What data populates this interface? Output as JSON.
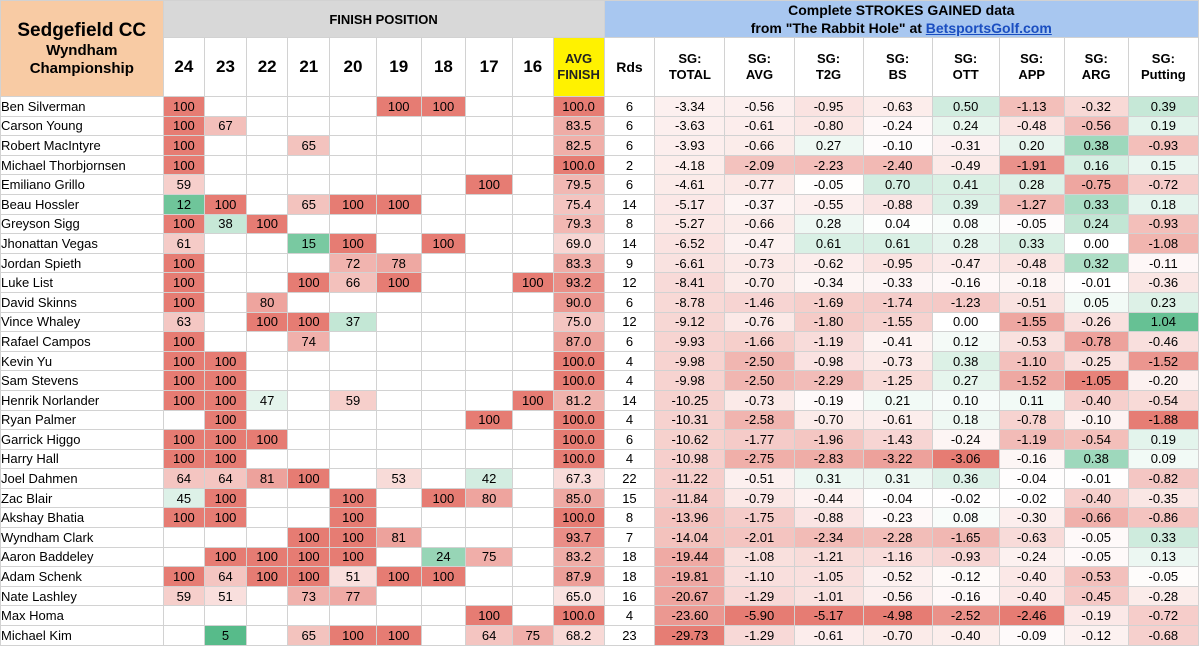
{
  "title": {
    "line1": "Sedgefield CC",
    "line2": "Wyndham",
    "line3": "Championship"
  },
  "finish_header": "FINISH POSITION",
  "sg_header": {
    "line1": "Complete STROKES GAINED data",
    "line2_prefix": "from \"The Rabbit Hole\" at ",
    "line2_link": "BetsportsGolf.com"
  },
  "finish_columns": [
    "24",
    "23",
    "22",
    "21",
    "20",
    "19",
    "18",
    "17",
    "16"
  ],
  "avg_header": {
    "line1": "AVG",
    "line2": "FINISH"
  },
  "rds_header": "Rds",
  "sg_columns": [
    {
      "line1": "SG:",
      "line2": "TOTAL"
    },
    {
      "line1": "SG:",
      "line2": "AVG"
    },
    {
      "line1": "SG:",
      "line2": "T2G"
    },
    {
      "line1": "SG:",
      "line2": "BS"
    },
    {
      "line1": "SG:",
      "line2": "OTT"
    },
    {
      "line1": "SG:",
      "line2": "APP"
    },
    {
      "line1": "SG:",
      "line2": "ARG"
    },
    {
      "line1": "SG:",
      "line2": "Putting"
    }
  ],
  "colors": {
    "title_bg": "#f8cba4",
    "finish_header_bg": "#d8d8d8",
    "sg_header_bg": "#a8c7f0",
    "avg_header_bg": "#fff200",
    "link": "#1a4ec1",
    "bad": "#e67c73",
    "good": "#57bb8a"
  },
  "rows": [
    {
      "name": "Ben Silverman",
      "finishes": [
        "100",
        "",
        "",
        "",
        "",
        "100",
        "100",
        "",
        ""
      ],
      "avg": "100.0",
      "rds": "6",
      "sg": [
        "-3.34",
        "-0.56",
        "-0.95",
        "-0.63",
        "0.50",
        "-1.13",
        "-0.32",
        "0.39"
      ]
    },
    {
      "name": "Carson Young",
      "finishes": [
        "100",
        "67",
        "",
        "",
        "",
        "",
        "",
        "",
        ""
      ],
      "avg": "83.5",
      "rds": "6",
      "sg": [
        "-3.63",
        "-0.61",
        "-0.80",
        "-0.24",
        "0.24",
        "-0.48",
        "-0.56",
        "0.19"
      ]
    },
    {
      "name": "Robert MacIntyre",
      "finishes": [
        "100",
        "",
        "",
        "65",
        "",
        "",
        "",
        "",
        ""
      ],
      "avg": "82.5",
      "rds": "6",
      "sg": [
        "-3.93",
        "-0.66",
        "0.27",
        "-0.10",
        "-0.31",
        "0.20",
        "0.38",
        "-0.93"
      ]
    },
    {
      "name": "Michael Thorbjornsen",
      "finishes": [
        "100",
        "",
        "",
        "",
        "",
        "",
        "",
        "",
        ""
      ],
      "avg": "100.0",
      "rds": "2",
      "sg": [
        "-4.18",
        "-2.09",
        "-2.23",
        "-2.40",
        "-0.49",
        "-1.91",
        "0.16",
        "0.15"
      ]
    },
    {
      "name": "Emiliano Grillo",
      "finishes": [
        "59",
        "",
        "",
        "",
        "",
        "",
        "",
        "100",
        ""
      ],
      "avg": "79.5",
      "rds": "6",
      "sg": [
        "-4.61",
        "-0.77",
        "-0.05",
        "0.70",
        "0.41",
        "0.28",
        "-0.75",
        "-0.72"
      ]
    },
    {
      "name": "Beau Hossler",
      "finishes": [
        "12",
        "100",
        "",
        "65",
        "100",
        "100",
        "",
        "",
        ""
      ],
      "avg": "75.4",
      "rds": "14",
      "sg": [
        "-5.17",
        "-0.37",
        "-0.55",
        "-0.88",
        "0.39",
        "-1.27",
        "0.33",
        "0.18"
      ]
    },
    {
      "name": "Greyson Sigg",
      "finishes": [
        "100",
        "38",
        "100",
        "",
        "",
        "",
        "",
        "",
        ""
      ],
      "avg": "79.3",
      "rds": "8",
      "sg": [
        "-5.27",
        "-0.66",
        "0.28",
        "0.04",
        "0.08",
        "-0.05",
        "0.24",
        "-0.93"
      ]
    },
    {
      "name": "Jhonattan Vegas",
      "finishes": [
        "61",
        "",
        "",
        "15",
        "100",
        "",
        "100",
        "",
        ""
      ],
      "avg": "69.0",
      "rds": "14",
      "sg": [
        "-6.52",
        "-0.47",
        "0.61",
        "0.61",
        "0.28",
        "0.33",
        "0.00",
        "-1.08"
      ]
    },
    {
      "name": "Jordan Spieth",
      "finishes": [
        "100",
        "",
        "",
        "",
        "72",
        "78",
        "",
        "",
        ""
      ],
      "avg": "83.3",
      "rds": "9",
      "sg": [
        "-6.61",
        "-0.73",
        "-0.62",
        "-0.95",
        "-0.47",
        "-0.48",
        "0.32",
        "-0.11"
      ]
    },
    {
      "name": "Luke List",
      "finishes": [
        "100",
        "",
        "",
        "100",
        "66",
        "100",
        "",
        "",
        "100"
      ],
      "avg": "93.2",
      "rds": "12",
      "sg": [
        "-8.41",
        "-0.70",
        "-0.34",
        "-0.33",
        "-0.16",
        "-0.18",
        "-0.01",
        "-0.36"
      ]
    },
    {
      "name": "David Skinns",
      "finishes": [
        "100",
        "",
        "80",
        "",
        "",
        "",
        "",
        "",
        ""
      ],
      "avg": "90.0",
      "rds": "6",
      "sg": [
        "-8.78",
        "-1.46",
        "-1.69",
        "-1.74",
        "-1.23",
        "-0.51",
        "0.05",
        "0.23"
      ]
    },
    {
      "name": "Vince Whaley",
      "finishes": [
        "63",
        "",
        "100",
        "100",
        "37",
        "",
        "",
        "",
        ""
      ],
      "avg": "75.0",
      "rds": "12",
      "sg": [
        "-9.12",
        "-0.76",
        "-1.80",
        "-1.55",
        "0.00",
        "-1.55",
        "-0.26",
        "1.04"
      ]
    },
    {
      "name": "Rafael Campos",
      "finishes": [
        "100",
        "",
        "",
        "74",
        "",
        "",
        "",
        "",
        ""
      ],
      "avg": "87.0",
      "rds": "6",
      "sg": [
        "-9.93",
        "-1.66",
        "-1.19",
        "-0.41",
        "0.12",
        "-0.53",
        "-0.78",
        "-0.46"
      ]
    },
    {
      "name": "Kevin Yu",
      "finishes": [
        "100",
        "100",
        "",
        "",
        "",
        "",
        "",
        "",
        ""
      ],
      "avg": "100.0",
      "rds": "4",
      "sg": [
        "-9.98",
        "-2.50",
        "-0.98",
        "-0.73",
        "0.38",
        "-1.10",
        "-0.25",
        "-1.52"
      ]
    },
    {
      "name": "Sam Stevens",
      "finishes": [
        "100",
        "100",
        "",
        "",
        "",
        "",
        "",
        "",
        ""
      ],
      "avg": "100.0",
      "rds": "4",
      "sg": [
        "-9.98",
        "-2.50",
        "-2.29",
        "-1.25",
        "0.27",
        "-1.52",
        "-1.05",
        "-0.20"
      ]
    },
    {
      "name": "Henrik Norlander",
      "finishes": [
        "100",
        "100",
        "47",
        "",
        "59",
        "",
        "",
        "",
        "100"
      ],
      "avg": "81.2",
      "rds": "14",
      "sg": [
        "-10.25",
        "-0.73",
        "-0.19",
        "0.21",
        "0.10",
        "0.11",
        "-0.40",
        "-0.54"
      ]
    },
    {
      "name": "Ryan Palmer",
      "finishes": [
        "",
        "100",
        "",
        "",
        "",
        "",
        "",
        "100",
        ""
      ],
      "avg": "100.0",
      "rds": "4",
      "sg": [
        "-10.31",
        "-2.58",
        "-0.70",
        "-0.61",
        "0.18",
        "-0.78",
        "-0.10",
        "-1.88"
      ]
    },
    {
      "name": "Garrick Higgo",
      "finishes": [
        "100",
        "100",
        "100",
        "",
        "",
        "",
        "",
        "",
        ""
      ],
      "avg": "100.0",
      "rds": "6",
      "sg": [
        "-10.62",
        "-1.77",
        "-1.96",
        "-1.43",
        "-0.24",
        "-1.19",
        "-0.54",
        "0.19"
      ]
    },
    {
      "name": "Harry Hall",
      "finishes": [
        "100",
        "100",
        "",
        "",
        "",
        "",
        "",
        "",
        ""
      ],
      "avg": "100.0",
      "rds": "4",
      "sg": [
        "-10.98",
        "-2.75",
        "-2.83",
        "-3.22",
        "-3.06",
        "-0.16",
        "0.38",
        "0.09"
      ]
    },
    {
      "name": "Joel Dahmen",
      "finishes": [
        "64",
        "64",
        "81",
        "100",
        "",
        "53",
        "",
        "42",
        ""
      ],
      "avg": "67.3",
      "rds": "22",
      "sg": [
        "-11.22",
        "-0.51",
        "0.31",
        "0.31",
        "0.36",
        "-0.04",
        "-0.01",
        "-0.82"
      ]
    },
    {
      "name": "Zac Blair",
      "finishes": [
        "45",
        "100",
        "",
        "",
        "100",
        "",
        "100",
        "80",
        ""
      ],
      "avg": "85.0",
      "rds": "15",
      "sg": [
        "-11.84",
        "-0.79",
        "-0.44",
        "-0.04",
        "-0.02",
        "-0.02",
        "-0.40",
        "-0.35"
      ]
    },
    {
      "name": "Akshay Bhatia",
      "finishes": [
        "100",
        "100",
        "",
        "",
        "100",
        "",
        "",
        "",
        ""
      ],
      "avg": "100.0",
      "rds": "8",
      "sg": [
        "-13.96",
        "-1.75",
        "-0.88",
        "-0.23",
        "0.08",
        "-0.30",
        "-0.66",
        "-0.86"
      ]
    },
    {
      "name": "Wyndham Clark",
      "finishes": [
        "",
        "",
        "",
        "100",
        "100",
        "81",
        "",
        "",
        ""
      ],
      "avg": "93.7",
      "rds": "7",
      "sg": [
        "-14.04",
        "-2.01",
        "-2.34",
        "-2.28",
        "-1.65",
        "-0.63",
        "-0.05",
        "0.33"
      ]
    },
    {
      "name": "Aaron Baddeley",
      "finishes": [
        "",
        "100",
        "100",
        "100",
        "100",
        "",
        "24",
        "75",
        ""
      ],
      "avg": "83.2",
      "rds": "18",
      "sg": [
        "-19.44",
        "-1.08",
        "-1.21",
        "-1.16",
        "-0.93",
        "-0.24",
        "-0.05",
        "0.13"
      ]
    },
    {
      "name": "Adam Schenk",
      "finishes": [
        "100",
        "64",
        "100",
        "100",
        "51",
        "100",
        "100",
        "",
        ""
      ],
      "avg": "87.9",
      "rds": "18",
      "sg": [
        "-19.81",
        "-1.10",
        "-1.05",
        "-0.52",
        "-0.12",
        "-0.40",
        "-0.53",
        "-0.05"
      ]
    },
    {
      "name": "Nate Lashley",
      "finishes": [
        "59",
        "51",
        "",
        "73",
        "77",
        "",
        "",
        "",
        ""
      ],
      "avg": "65.0",
      "rds": "16",
      "sg": [
        "-20.67",
        "-1.29",
        "-1.01",
        "-0.56",
        "-0.16",
        "-0.40",
        "-0.45",
        "-0.28"
      ]
    },
    {
      "name": "Max Homa",
      "finishes": [
        "",
        "",
        "",
        "",
        "",
        "",
        "",
        "100",
        ""
      ],
      "avg": "100.0",
      "rds": "4",
      "sg": [
        "-23.60",
        "-5.90",
        "-5.17",
        "-4.98",
        "-2.52",
        "-2.46",
        "-0.19",
        "-0.72"
      ]
    },
    {
      "name": "Michael Kim",
      "finishes": [
        "",
        "5",
        "",
        "65",
        "100",
        "100",
        "",
        "64",
        "75"
      ],
      "avg": "68.2",
      "rds": "23",
      "sg": [
        "-29.73",
        "-1.29",
        "-0.61",
        "-0.70",
        "-0.40",
        "-0.09",
        "-0.12",
        "-0.68"
      ]
    }
  ]
}
